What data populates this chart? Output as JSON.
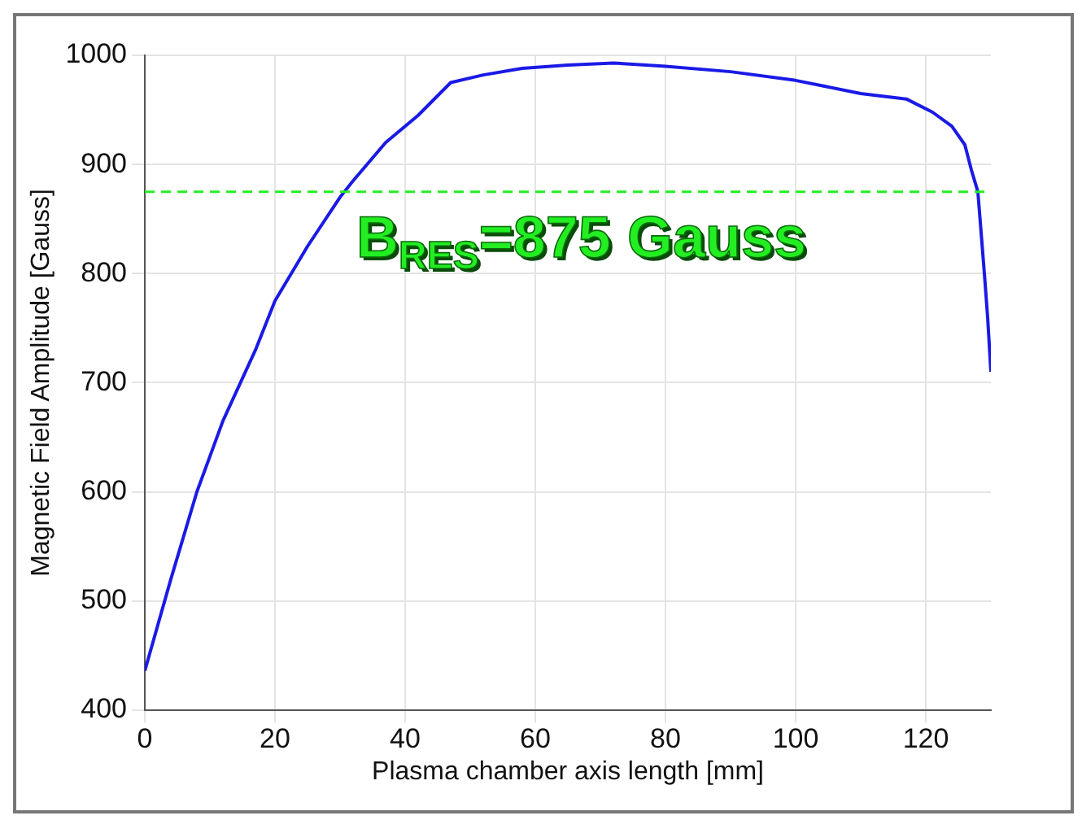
{
  "chart_data": {
    "type": "line",
    "xlabel": "Plasma chamber axis length [mm]",
    "ylabel": "Magnetic Field Amplitude [Gauss]",
    "xlim": [
      0,
      130
    ],
    "xticks": [
      0,
      20,
      40,
      60,
      80,
      100,
      120
    ],
    "ylim": [
      400,
      1000
    ],
    "yticks": [
      400,
      500,
      600,
      700,
      800,
      900,
      1000
    ],
    "grid": true,
    "marker": "none",
    "line_style": "solid",
    "series": [
      {
        "color": "#1a1ae6",
        "x": [
          0,
          4,
          8,
          12,
          17,
          20,
          25,
          30,
          32,
          37,
          42,
          47,
          52,
          58,
          65,
          72,
          80,
          90,
          100,
          110,
          117,
          121,
          124,
          126,
          127,
          128,
          129,
          129.5,
          130
        ],
        "values": [
          436,
          520,
          600,
          665,
          730,
          775,
          825,
          870,
          885,
          920,
          945,
          975,
          982,
          988,
          991,
          993,
          990,
          985,
          977,
          965,
          960,
          948,
          935,
          918,
          895,
          875,
          800,
          760,
          710
        ]
      }
    ],
    "ref_lines": [
      {
        "axis": "y",
        "value": 875,
        "label": "B$_{RES}$=875 Gauss",
        "color": "#22ee22",
        "line_style": "dashed"
      }
    ]
  }
}
